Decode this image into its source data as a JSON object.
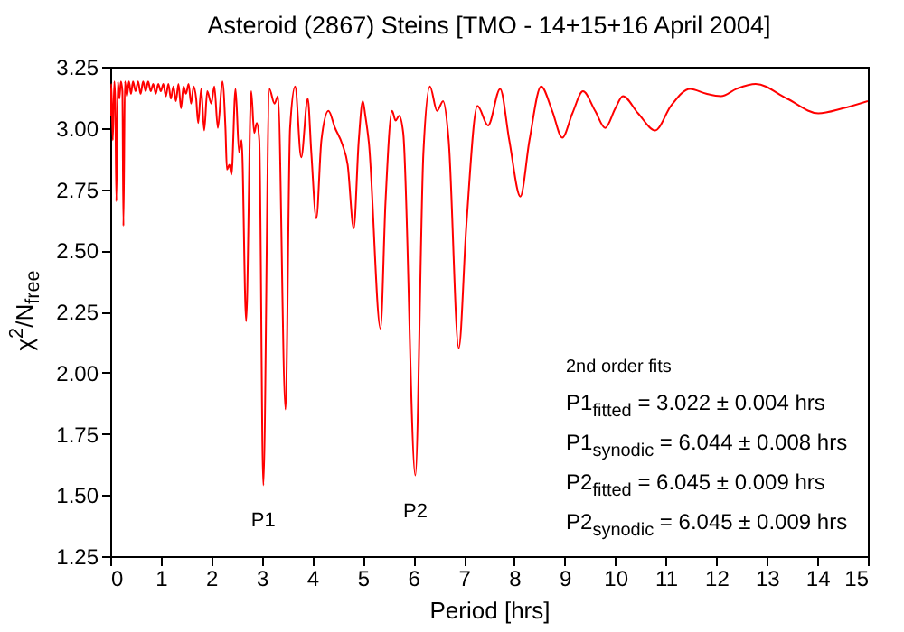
{
  "chart_data": {
    "type": "line",
    "title": "Asteroid (2867) Steins [TMO - 14+15+16 April 2004]",
    "xlabel": "Period [hrs]",
    "ylabel": "χ$^{2}$/N$_{free}$",
    "color": "#ff0000",
    "line_style": "solid",
    "grid": false,
    "x": [
      0.0,
      0.02,
      0.05,
      0.08,
      0.1,
      0.12,
      0.15,
      0.18,
      0.21,
      0.24,
      0.26,
      0.29,
      0.33,
      0.37,
      0.41,
      0.45,
      0.5,
      0.55,
      0.6,
      0.65,
      0.7,
      0.75,
      0.8,
      0.85,
      0.9,
      0.95,
      1.0,
      1.05,
      1.1,
      1.15,
      1.2,
      1.25,
      1.3,
      1.35,
      1.4,
      1.45,
      1.5,
      1.55,
      1.6,
      1.65,
      1.7,
      1.74,
      1.8,
      1.86,
      1.92,
      2.0,
      2.06,
      2.13,
      2.22,
      2.28,
      2.31,
      2.36,
      2.4,
      2.48,
      2.55,
      2.6,
      2.69,
      2.79,
      2.85,
      2.9,
      2.95,
      3.03,
      3.15,
      3.25,
      3.32,
      3.47,
      3.56,
      3.66,
      3.78,
      3.91,
      3.98,
      4.08,
      4.18,
      4.32,
      4.45,
      4.6,
      4.7,
      4.82,
      4.92,
      5.0,
      5.05,
      5.12,
      5.35,
      5.45,
      5.58,
      5.65,
      5.72,
      5.8,
      6.04,
      6.2,
      6.33,
      6.47,
      6.59,
      6.7,
      6.9,
      7.05,
      7.27,
      7.48,
      7.72,
      7.9,
      8.12,
      8.3,
      8.53,
      8.75,
      8.95,
      9.15,
      9.36,
      9.6,
      9.8,
      10.0,
      10.15,
      10.45,
      10.79,
      11.1,
      11.48,
      11.8,
      12.09,
      12.4,
      12.78,
      13.4,
      14.02,
      14.5,
      15.0
    ],
    "values": [
      3.05,
      3.18,
      2.95,
      3.19,
      3.1,
      2.7,
      3.19,
      3.12,
      3.19,
      3.15,
      2.6,
      3.19,
      3.13,
      3.19,
      3.14,
      3.19,
      3.15,
      3.19,
      3.14,
      3.19,
      3.15,
      3.19,
      3.15,
      3.18,
      3.14,
      3.18,
      3.15,
      3.18,
      3.13,
      3.18,
      3.12,
      3.17,
      3.11,
      3.18,
      3.08,
      3.17,
      3.14,
      3.18,
      3.1,
      3.17,
      3.12,
      3.02,
      3.16,
      2.99,
      3.15,
      3.1,
      3.17,
      3.0,
      3.19,
      3.0,
      2.83,
      2.85,
      2.81,
      3.16,
      2.9,
      2.95,
      2.21,
      3.15,
      2.98,
      3.02,
      2.95,
      1.54,
      3.16,
      3.1,
      3.13,
      1.85,
      3.0,
      3.17,
      2.88,
      3.12,
      2.9,
      2.63,
      2.95,
      3.07,
      3.0,
      2.93,
      2.85,
      2.59,
      2.95,
      3.11,
      3.05,
      2.94,
      2.18,
      2.7,
      3.07,
      3.03,
      3.05,
      2.98,
      1.58,
      2.9,
      3.17,
      3.07,
      3.11,
      2.95,
      2.1,
      2.6,
      3.09,
      3.01,
      3.16,
      2.95,
      2.72,
      2.95,
      3.17,
      3.07,
      2.96,
      3.06,
      3.15,
      3.07,
      3.0,
      3.08,
      3.13,
      3.06,
      2.99,
      3.09,
      3.16,
      3.14,
      3.13,
      3.16,
      3.18,
      3.12,
      3.06,
      3.08,
      3.11
    ],
    "xlim": [
      0,
      15
    ],
    "xticks": [
      0,
      1,
      2,
      3,
      4,
      5,
      6,
      7,
      8,
      9,
      10,
      11,
      12,
      13,
      14,
      15
    ],
    "ylim": [
      1.25,
      3.25
    ],
    "yticks": [
      1.25,
      {
        "value": 1.5,
        "label": "1.50"
      },
      1.75,
      {
        "value": 2,
        "label": "2.00"
      },
      2.25,
      {
        "value": 2.5,
        "label": "2.50"
      },
      2.75,
      {
        "value": 3,
        "label": "3.00"
      },
      3.25
    ],
    "annotations": [
      {
        "text": "P1",
        "x": 3.03,
        "y": 1.54
      },
      {
        "text": "P2",
        "x": 6.04,
        "y": 1.58
      },
      "2nd order fits",
      "P1$_{fitted}$ = 3.022 ± 0.004 hrs",
      "P1$_{synodic}$ = 6.044 ± 0.008 hrs",
      "P2$_{fitted}$ = 6.045 ± 0.009 hrs",
      "P2$_{synodic}$ = 6.045 ± 0.009 hrs"
    ]
  }
}
